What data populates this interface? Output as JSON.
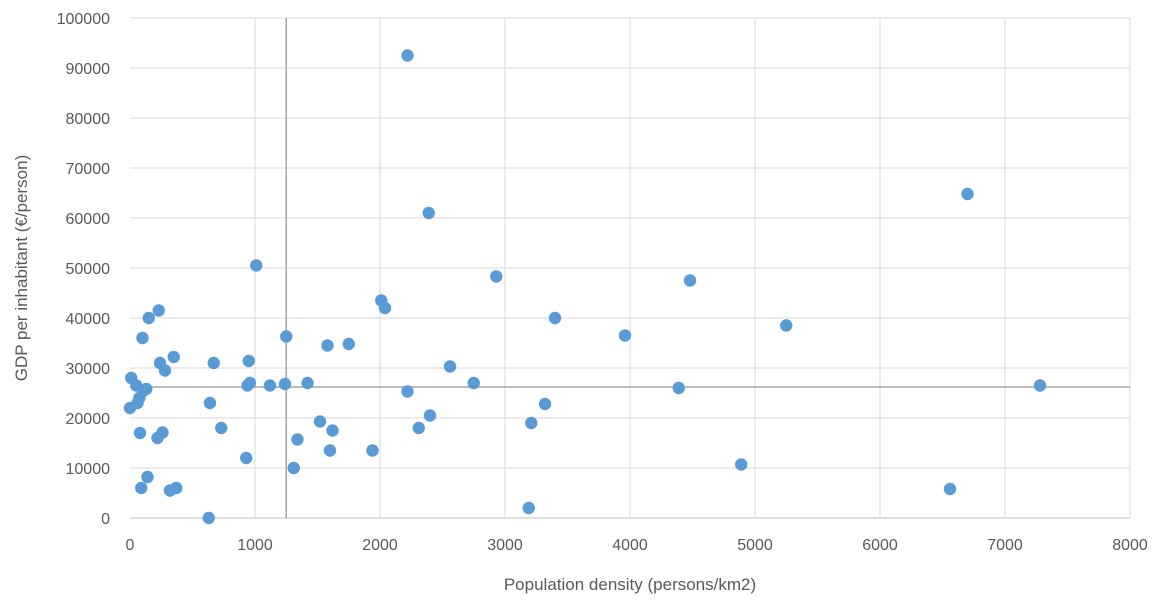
{
  "chart_data": {
    "type": "scatter",
    "title": "",
    "xlabel": "Population density (persons/km2)",
    "ylabel": "GDP per inhabitant (€/person)",
    "xlim": [
      0,
      8000
    ],
    "ylim": [
      0,
      100000
    ],
    "x_ticks": [
      "0",
      "1000",
      "2000",
      "3000",
      "4000",
      "5000",
      "6000",
      "7000",
      "8000"
    ],
    "y_ticks": [
      "0",
      "10000",
      "20000",
      "30000",
      "40000",
      "50000",
      "60000",
      "70000",
      "80000",
      "90000",
      "100000"
    ],
    "grid": true,
    "legend": "none",
    "marker_color": "#5B9BD5",
    "reference_lines": {
      "x": 1250,
      "y": 26200,
      "color": "#A6A6A6"
    },
    "series": [
      {
        "points": [
          [
            0,
            22000
          ],
          [
            10,
            28000
          ],
          [
            50,
            26500
          ],
          [
            60,
            23000
          ],
          [
            75,
            24000
          ],
          [
            80,
            17000
          ],
          [
            90,
            6000
          ],
          [
            100,
            36000
          ],
          [
            110,
            25500
          ],
          [
            130,
            25800
          ],
          [
            140,
            8200
          ],
          [
            150,
            40000
          ],
          [
            220,
            16000
          ],
          [
            230,
            41500
          ],
          [
            240,
            31000
          ],
          [
            260,
            17100
          ],
          [
            280,
            29500
          ],
          [
            320,
            5500
          ],
          [
            350,
            32200
          ],
          [
            370,
            6000
          ],
          [
            630,
            0
          ],
          [
            640,
            23000
          ],
          [
            670,
            31000
          ],
          [
            730,
            18000
          ],
          [
            930,
            12000
          ],
          [
            940,
            26500
          ],
          [
            950,
            31400
          ],
          [
            960,
            27000
          ],
          [
            1010,
            50500
          ],
          [
            1120,
            26500
          ],
          [
            1240,
            26800
          ],
          [
            1250,
            36300
          ],
          [
            1310,
            10000
          ],
          [
            1340,
            15700
          ],
          [
            1420,
            27000
          ],
          [
            1520,
            19300
          ],
          [
            1580,
            34500
          ],
          [
            1600,
            13500
          ],
          [
            1620,
            17500
          ],
          [
            1750,
            34800
          ],
          [
            1940,
            13500
          ],
          [
            2010,
            43500
          ],
          [
            2040,
            42000
          ],
          [
            2220,
            25300
          ],
          [
            2220,
            92500
          ],
          [
            2310,
            18000
          ],
          [
            2390,
            61000
          ],
          [
            2400,
            20500
          ],
          [
            2560,
            30300
          ],
          [
            2750,
            27000
          ],
          [
            2930,
            48300
          ],
          [
            3190,
            2000
          ],
          [
            3210,
            19000
          ],
          [
            3320,
            22800
          ],
          [
            3400,
            40000
          ],
          [
            3960,
            36500
          ],
          [
            4390,
            26000
          ],
          [
            4480,
            47500
          ],
          [
            4890,
            10700
          ],
          [
            5250,
            38500
          ],
          [
            6560,
            5800
          ],
          [
            6700,
            64800
          ],
          [
            7280,
            26500
          ]
        ]
      }
    ]
  }
}
